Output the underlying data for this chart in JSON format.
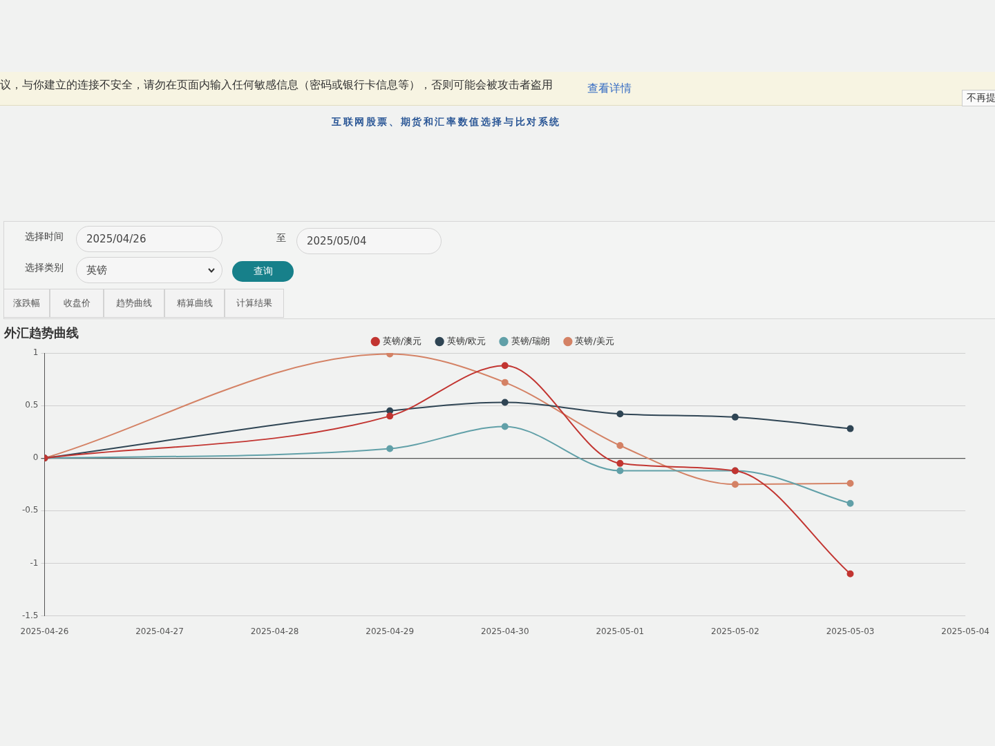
{
  "chart_data": {
    "type": "line",
    "title": "外汇趋势曲线",
    "subtitle": "互联网股票、期货和汇率数值选择与比对系统",
    "annotations": [
      "议，与你建立的连接不安全，请勿在页面内输入任何敏感信息（密码或银行卡信息等），否则可能会被攻击者盗用",
      "查看详情",
      "不再提",
      "选择时间",
      "2025/04/26",
      "至",
      "2025/05/04",
      "选择类别",
      "英镑",
      "查询",
      "涨跌幅",
      "收盘价",
      "趋势曲线",
      "精算曲线",
      "计算结果"
    ],
    "x": [
      "2025-04-26",
      "2025-04-29",
      "2025-04-30",
      "2025-05-01",
      "2025-05-02",
      "2025-05-03"
    ],
    "series": [
      {
        "name": "英镑/澳元",
        "color": "#c23531",
        "values": [
          0,
          0.4,
          0.88,
          -0.05,
          -0.12,
          -1.1
        ]
      },
      {
        "name": "英镑/欧元",
        "color": "#2f4554",
        "values": [
          0,
          0.45,
          0.53,
          0.42,
          0.39,
          0.28
        ]
      },
      {
        "name": "英镑/瑞朗",
        "color": "#61a0a8",
        "values": [
          0,
          0.09,
          0.3,
          -0.12,
          -0.12,
          -0.43
        ]
      },
      {
        "name": "英镑/美元",
        "color": "#d48265",
        "values": [
          0,
          0.99,
          0.72,
          0.12,
          -0.25,
          -0.24
        ]
      }
    ],
    "xlim": [
      "2025-04-26",
      "2025-05-04"
    ],
    "xticks": [
      "2025-04-26",
      "2025-04-27",
      "2025-04-28",
      "2025-04-29",
      "2025-04-30",
      "2025-05-01",
      "2025-05-02",
      "2025-05-03",
      "2025-05-04"
    ],
    "ylim": [
      -1.5,
      1
    ],
    "yticks": [
      -1.5,
      -1,
      -0.5,
      0,
      0.5,
      1
    ],
    "grid": "y",
    "legend": "top",
    "marker": "circle",
    "line_style": "solid"
  }
}
